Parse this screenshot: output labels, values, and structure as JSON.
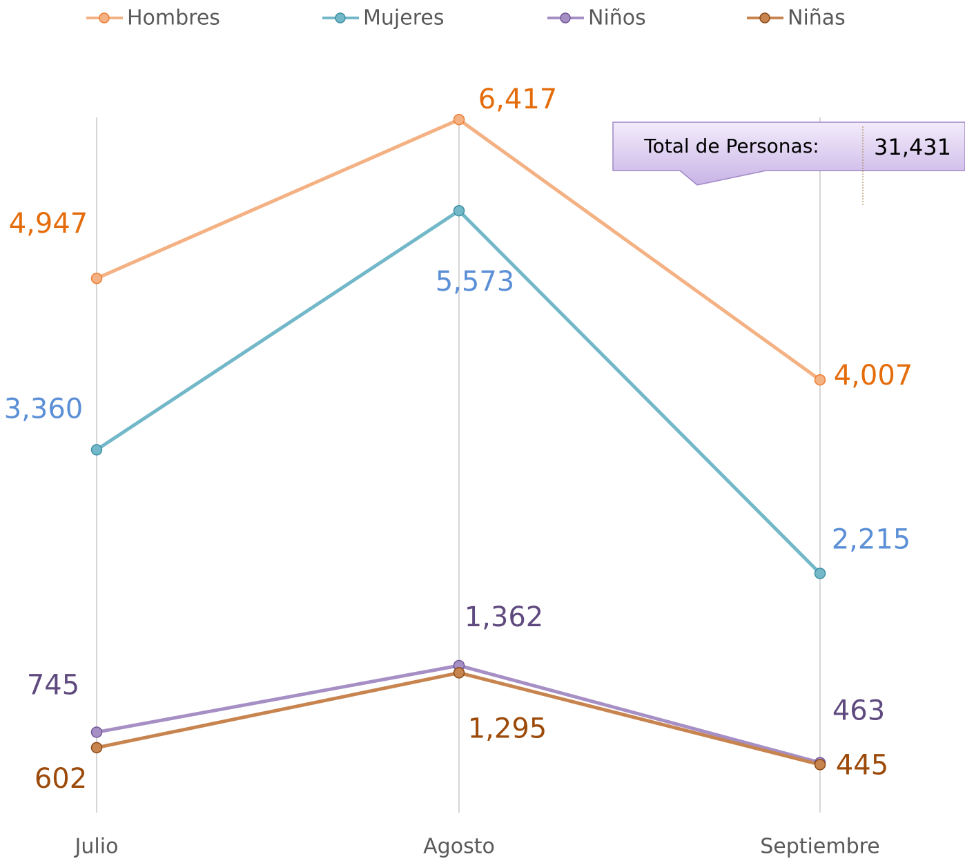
{
  "chart_data": {
    "type": "line",
    "categories": [
      "Julio",
      "Agosto",
      "Septiembre"
    ],
    "series": [
      {
        "name": "Hombres",
        "color": "#f4b183",
        "marker_stroke": "#ed7d31",
        "label_color": "#e46c0a",
        "values": [
          4947,
          6417,
          4007
        ],
        "value_labels": [
          "4,947",
          "6,417",
          "4,007"
        ]
      },
      {
        "name": "Mujeres",
        "color": "#72b8c9",
        "marker_stroke": "#3e8fa3",
        "label_color": "#5b8fd6",
        "values": [
          3360,
          5573,
          2215
        ],
        "value_labels": [
          "3,360",
          "5,573",
          "2,215"
        ]
      },
      {
        "name": "Niños",
        "color": "#a68fc4",
        "marker_stroke": "#6f5696",
        "label_color": "#5f4a7f",
        "values": [
          745,
          1362,
          463
        ],
        "value_labels": [
          "745",
          "1,362",
          "463"
        ]
      },
      {
        "name": "Niñas",
        "color": "#c7844f",
        "marker_stroke": "#8a4a16",
        "label_color": "#9c4a0a",
        "values": [
          602,
          1295,
          445
        ],
        "value_labels": [
          "602",
          "1,295",
          "445"
        ]
      }
    ],
    "ylim": [
      0,
      7000
    ],
    "annotation": {
      "label": "Total de Personas:",
      "text": "31,431"
    }
  }
}
